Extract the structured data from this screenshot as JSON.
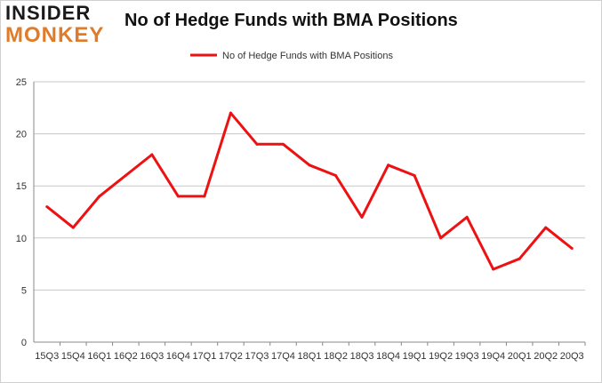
{
  "brand": {
    "line1": "INSIDER",
    "line2": "MONKEY"
  },
  "chart_data": {
    "type": "line",
    "title": "No of Hedge Funds with BMA Positions",
    "xlabel": "",
    "ylabel": "",
    "categories": [
      "15Q3",
      "15Q4",
      "16Q1",
      "16Q2",
      "16Q3",
      "16Q4",
      "17Q1",
      "17Q2",
      "17Q3",
      "17Q4",
      "18Q1",
      "18Q2",
      "18Q3",
      "18Q4",
      "19Q1",
      "19Q2",
      "19Q3",
      "19Q4",
      "20Q1",
      "20Q2",
      "20Q3"
    ],
    "series": [
      {
        "name": "No of Hedge Funds with BMA Positions",
        "color": "#ee1111",
        "values": [
          13,
          11,
          14,
          16,
          18,
          14,
          14,
          22,
          19,
          19,
          17,
          16,
          12,
          17,
          16,
          10,
          12,
          7,
          8,
          11,
          9
        ]
      }
    ],
    "ylim": [
      0,
      25
    ],
    "yticks": [
      0,
      5,
      10,
      15,
      20,
      25
    ],
    "grid": true,
    "legend": "top-center"
  }
}
